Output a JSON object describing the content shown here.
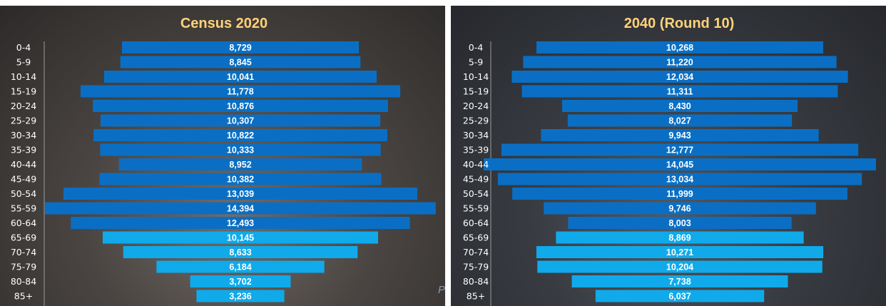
{
  "colors": {
    "dark_bar": "#0a6fc4",
    "light_bar": "#10aaea",
    "title": "#ffd27a",
    "axis_line": "#9a9a9a"
  },
  "watermark_fragment": "P",
  "chart_data": [
    {
      "type": "bar",
      "orientation": "population-pyramid (centered horizontal bars)",
      "title": "Census 2020",
      "categories": [
        "0-4",
        "5-9",
        "10-14",
        "15-19",
        "20-24",
        "25-29",
        "30-34",
        "35-39",
        "40-44",
        "45-49",
        "50-54",
        "55-59",
        "60-64",
        "65-69",
        "70-74",
        "75-79",
        "80-84",
        "85+"
      ],
      "values": [
        8729,
        8845,
        10041,
        11778,
        10876,
        10307,
        10822,
        10333,
        8952,
        10382,
        13039,
        14394,
        12493,
        10145,
        8633,
        6184,
        3702,
        3236
      ],
      "labels": [
        "8,729",
        "8,845",
        "10,041",
        "11,778",
        "10,876",
        "10,307",
        "10,822",
        "10,333",
        "8,952",
        "10,382",
        "13,039",
        "14,394",
        "12,493",
        "10,145",
        "8,633",
        "6,184",
        "3,702",
        "3,236"
      ],
      "light_from_index": 13
    },
    {
      "type": "bar",
      "orientation": "population-pyramid (centered horizontal bars)",
      "title": "2040 (Round 10)",
      "categories": [
        "0-4",
        "5-9",
        "10-14",
        "15-19",
        "20-24",
        "25-29",
        "30-34",
        "35-39",
        "40-44",
        "45-49",
        "50-54",
        "55-59",
        "60-64",
        "65-69",
        "70-74",
        "75-79",
        "80-84",
        "85+"
      ],
      "values": [
        10268,
        11220,
        12034,
        11311,
        8430,
        8027,
        9943,
        12777,
        14045,
        13034,
        11999,
        9746,
        8003,
        8869,
        10271,
        10204,
        7738,
        6037
      ],
      "labels": [
        "10,268",
        "11,220",
        "12,034",
        "11,311",
        "8,430",
        "8,027",
        "9,943",
        "12,777",
        "14,045",
        "13,034",
        "11,999",
        "9,746",
        "8,003",
        "8,869",
        "10,271",
        "10,204",
        "7,738",
        "6,037"
      ],
      "light_from_index": 13
    }
  ]
}
